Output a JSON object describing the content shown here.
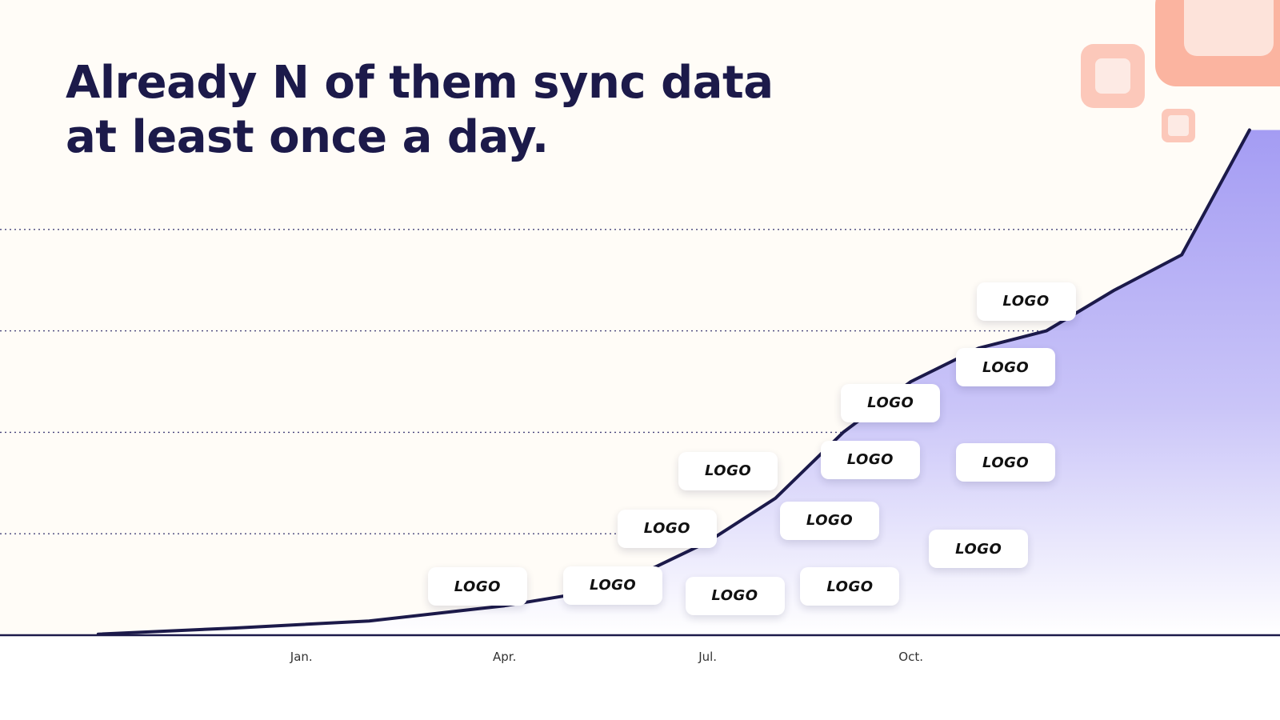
{
  "slide": {
    "title_line1": "Already N of them sync data",
    "title_line2": "at least once a day."
  },
  "colors": {
    "line": "#1c1a4a",
    "fill_top": "#a49cf3",
    "fill_bottom": "#ffffff",
    "grid": "#45437a",
    "axis": "#1c1a4a",
    "tick_text": "#333333"
  },
  "chart_data": {
    "type": "area",
    "title": "Already N of them sync data at least once a day.",
    "xlabel": "",
    "ylabel": "",
    "x_months": [
      0,
      2,
      4,
      6,
      7,
      8,
      9,
      10,
      11,
      12,
      13,
      14,
      15,
      16,
      17
    ],
    "values": [
      1,
      7,
      14,
      29,
      40,
      60,
      92,
      135,
      200,
      250,
      283,
      300,
      340,
      375,
      498
    ],
    "tick_positions": [
      3,
      6,
      9,
      12
    ],
    "tick_labels": [
      "Jan.",
      "Apr.",
      "Jul.",
      "Oct."
    ],
    "xlim": [
      -1.45,
      17.45
    ],
    "ylim": [
      0,
      500
    ],
    "gridlines": [
      100,
      200,
      300,
      400
    ],
    "grid": true,
    "logos": [
      {
        "label": "LOGO",
        "month": 5.6,
        "value": 48
      },
      {
        "label": "LOGO",
        "month": 7.6,
        "value": 49
      },
      {
        "label": "LOGO",
        "month": 8.4,
        "value": 105
      },
      {
        "label": "LOGO",
        "month": 9.4,
        "value": 39
      },
      {
        "label": "LOGO",
        "month": 9.3,
        "value": 162
      },
      {
        "label": "LOGO",
        "month": 10.8,
        "value": 113
      },
      {
        "label": "LOGO",
        "month": 11.1,
        "value": 48
      },
      {
        "label": "LOGO",
        "month": 11.4,
        "value": 173
      },
      {
        "label": "LOGO",
        "month": 11.7,
        "value": 229
      },
      {
        "label": "LOGO",
        "month": 13.0,
        "value": 85
      },
      {
        "label": "LOGO",
        "month": 13.4,
        "value": 170
      },
      {
        "label": "LOGO",
        "month": 13.4,
        "value": 264
      },
      {
        "label": "LOGO",
        "month": 13.7,
        "value": 329
      }
    ]
  }
}
